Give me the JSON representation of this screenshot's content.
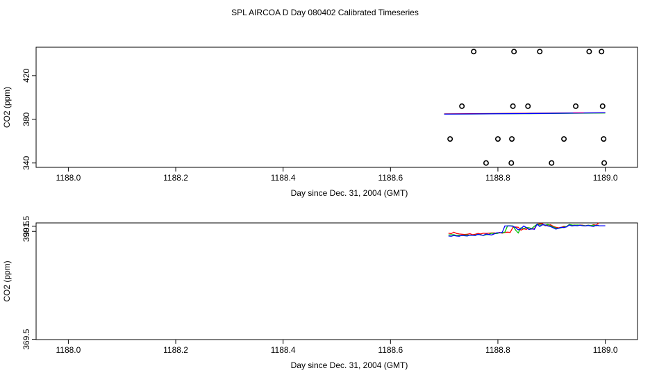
{
  "title": "SPL AIRCOA D  Day 080402  Calibrated Timeseries",
  "chart_data": [
    {
      "type": "scatter",
      "xlabel": "Day since Dec. 31, 2004 (GMT)",
      "ylabel": "CO2 (ppm)",
      "xlim": [
        1187.94,
        1189.06
      ],
      "ylim": [
        336,
        446
      ],
      "x_ticks": [
        1188.0,
        1188.2,
        1188.4,
        1188.6,
        1188.8,
        1189.0
      ],
      "x_tick_labels": [
        "1188.0",
        "1188.2",
        "1188.4",
        "1188.6",
        "1188.8",
        "1189.0"
      ],
      "y_ticks": [
        340,
        380,
        420
      ],
      "y_tick_labels": [
        "340",
        "380",
        "420"
      ],
      "points": [
        {
          "x": 1188.755,
          "y": 442
        },
        {
          "x": 1188.83,
          "y": 442
        },
        {
          "x": 1188.878,
          "y": 442
        },
        {
          "x": 1188.97,
          "y": 442
        },
        {
          "x": 1188.993,
          "y": 442
        },
        {
          "x": 1188.733,
          "y": 392
        },
        {
          "x": 1188.828,
          "y": 392
        },
        {
          "x": 1188.856,
          "y": 392
        },
        {
          "x": 1188.945,
          "y": 392
        },
        {
          "x": 1188.995,
          "y": 392
        },
        {
          "x": 1188.711,
          "y": 362
        },
        {
          "x": 1188.8,
          "y": 362
        },
        {
          "x": 1188.826,
          "y": 362
        },
        {
          "x": 1188.923,
          "y": 362
        },
        {
          "x": 1188.997,
          "y": 362
        },
        {
          "x": 1188.778,
          "y": 340
        },
        {
          "x": 1188.825,
          "y": 340
        },
        {
          "x": 1188.9,
          "y": 340
        },
        {
          "x": 1188.998,
          "y": 340
        }
      ],
      "series": [
        {
          "color": "#ff0000",
          "x": [
            1188.7,
            1188.85,
            1189.0
          ],
          "values": [
            385,
            385.5,
            386
          ]
        },
        {
          "color": "#00c000",
          "x": [
            1188.7,
            1188.85,
            1189.0
          ],
          "values": [
            384.7,
            385.2,
            385.8
          ]
        },
        {
          "color": "#0000ff",
          "x": [
            1188.7,
            1188.85,
            1189.0
          ],
          "values": [
            384.8,
            385.3,
            386
          ]
        },
        {
          "color": "#b000b0",
          "x": [
            1188.94,
            1188.96
          ],
          "values": [
            386,
            386
          ]
        }
      ]
    },
    {
      "type": "line",
      "xlabel": "Day since Dec. 31, 2004 (GMT)",
      "ylabel": "CO2 (ppm)",
      "xlim": [
        1187.94,
        1189.06
      ],
      "ylim": [
        369.45,
        392.15
      ],
      "x_ticks": [
        1188.0,
        1188.2,
        1188.4,
        1188.6,
        1188.8,
        1189.0
      ],
      "x_tick_labels": [
        "1188.0",
        "1188.2",
        "1188.4",
        "1188.6",
        "1188.8",
        "1189.0"
      ],
      "y_ticks": [
        369.5,
        390.5,
        391.5
      ],
      "y_tick_labels": [
        "369.5",
        "390.5",
        "391.5"
      ],
      "series": [
        {
          "color": "#ff0000",
          "x": [
            1188.708,
            1188.713,
            1188.718,
            1188.723,
            1188.728,
            1188.733,
            1188.738,
            1188.743,
            1188.748,
            1188.753,
            1188.758,
            1188.763,
            1188.768,
            1188.773,
            1188.778,
            1188.783,
            1188.788,
            1188.793,
            1188.798,
            1188.803,
            1188.808,
            1188.813,
            1188.818,
            1188.823,
            1188.828,
            1188.833,
            1188.838,
            1188.843,
            1188.848,
            1188.853,
            1188.858,
            1188.863,
            1188.868,
            1188.873,
            1188.878,
            1188.883,
            1188.888,
            1188.893,
            1188.898,
            1188.903,
            1188.908,
            1188.913,
            1188.918,
            1188.923,
            1188.928,
            1188.933,
            1188.938,
            1188.943,
            1188.948,
            1188.953,
            1188.958,
            1188.963,
            1188.968,
            1188.973,
            1188.978,
            1188.983,
            1188.988
          ],
          "values": [
            390.15,
            390.05,
            390.35,
            390.1,
            390.0,
            389.95,
            389.9,
            389.95,
            390.05,
            389.85,
            389.95,
            390.1,
            390.0,
            390.15,
            390.1,
            390.15,
            390.2,
            390.2,
            390.15,
            390.3,
            390.15,
            390.3,
            390.35,
            390.3,
            391.3,
            391.35,
            391.3,
            390.75,
            391.0,
            390.9,
            391.2,
            390.95,
            391.05,
            391.9,
            392.0,
            392.0,
            391.6,
            391.7,
            391.8,
            391.5,
            391.3,
            391.2,
            391.3,
            391.5,
            391.4,
            391.8,
            391.7,
            391.75,
            391.7,
            391.75,
            391.7,
            391.6,
            391.7,
            391.6,
            391.8,
            391.7,
            392.15
          ]
        },
        {
          "color": "#00c000",
          "x": [
            1188.708,
            1188.713,
            1188.718,
            1188.723,
            1188.728,
            1188.733,
            1188.738,
            1188.743,
            1188.748,
            1188.753,
            1188.758,
            1188.763,
            1188.768,
            1188.773,
            1188.778,
            1188.783,
            1188.788,
            1188.793,
            1188.798,
            1188.803,
            1188.808,
            1188.813,
            1188.818,
            1188.823,
            1188.828,
            1188.833,
            1188.838,
            1188.843,
            1188.848,
            1188.853,
            1188.858,
            1188.863,
            1188.868,
            1188.873,
            1188.878,
            1188.883,
            1188.888,
            1188.893,
            1188.898,
            1188.903,
            1188.908,
            1188.913,
            1188.918,
            1188.923,
            1188.928,
            1188.933,
            1188.938,
            1188.943,
            1188.948,
            1188.953,
            1188.958,
            1188.963,
            1188.968,
            1188.973,
            1188.978,
            1188.983,
            1188.988
          ],
          "values": [
            389.8,
            389.85,
            389.85,
            389.7,
            389.75,
            389.65,
            389.8,
            389.8,
            389.75,
            389.75,
            389.8,
            389.9,
            389.85,
            389.7,
            389.85,
            389.9,
            390.15,
            390.1,
            390.05,
            390.25,
            390.2,
            390.35,
            391.6,
            391.6,
            391.55,
            390.75,
            390.2,
            391.2,
            391.05,
            391.25,
            391.2,
            391.05,
            391.5,
            391.9,
            391.75,
            391.8,
            391.7,
            391.85,
            391.6,
            391.35,
            391.15,
            391.1,
            391.2,
            391.35,
            391.45,
            391.85,
            391.75,
            391.7,
            391.75,
            391.7,
            391.65,
            391.6,
            391.7,
            391.65,
            391.7,
            391.6,
            391.7
          ]
        },
        {
          "color": "#0000ff",
          "x": [
            1188.708,
            1188.713,
            1188.718,
            1188.723,
            1188.728,
            1188.733,
            1188.738,
            1188.743,
            1188.748,
            1188.753,
            1188.758,
            1188.763,
            1188.768,
            1188.773,
            1188.778,
            1188.783,
            1188.788,
            1188.793,
            1188.798,
            1188.803,
            1188.808,
            1188.813,
            1188.818,
            1188.823,
            1188.828,
            1188.833,
            1188.838,
            1188.843,
            1188.848,
            1188.853,
            1188.858,
            1188.863,
            1188.868,
            1188.873,
            1188.878,
            1188.883,
            1188.888,
            1188.893,
            1188.898,
            1188.903,
            1188.908,
            1188.913,
            1188.918,
            1188.923,
            1188.928,
            1188.933,
            1188.938,
            1188.943,
            1188.948,
            1188.953,
            1188.958,
            1188.963,
            1188.968,
            1188.973,
            1188.978,
            1188.983,
            1188.988,
            1188.993,
            1189.0
          ],
          "values": [
            389.6,
            389.55,
            389.7,
            389.6,
            389.55,
            389.75,
            389.65,
            389.6,
            389.8,
            389.75,
            389.7,
            389.95,
            389.8,
            389.75,
            390.0,
            389.9,
            389.8,
            390.0,
            390.25,
            390.2,
            390.3,
            391.55,
            391.55,
            391.55,
            391.5,
            391.25,
            390.8,
            391.0,
            391.55,
            391.25,
            390.85,
            391.0,
            390.9,
            391.9,
            391.45,
            391.8,
            391.75,
            391.55,
            391.45,
            391.2,
            390.95,
            391.1,
            391.3,
            391.25,
            391.4,
            391.75,
            391.55,
            391.65,
            391.6,
            391.7,
            391.6,
            391.55,
            391.65,
            391.55,
            391.45,
            391.7,
            391.6,
            391.6,
            391.6
          ]
        }
      ]
    }
  ]
}
